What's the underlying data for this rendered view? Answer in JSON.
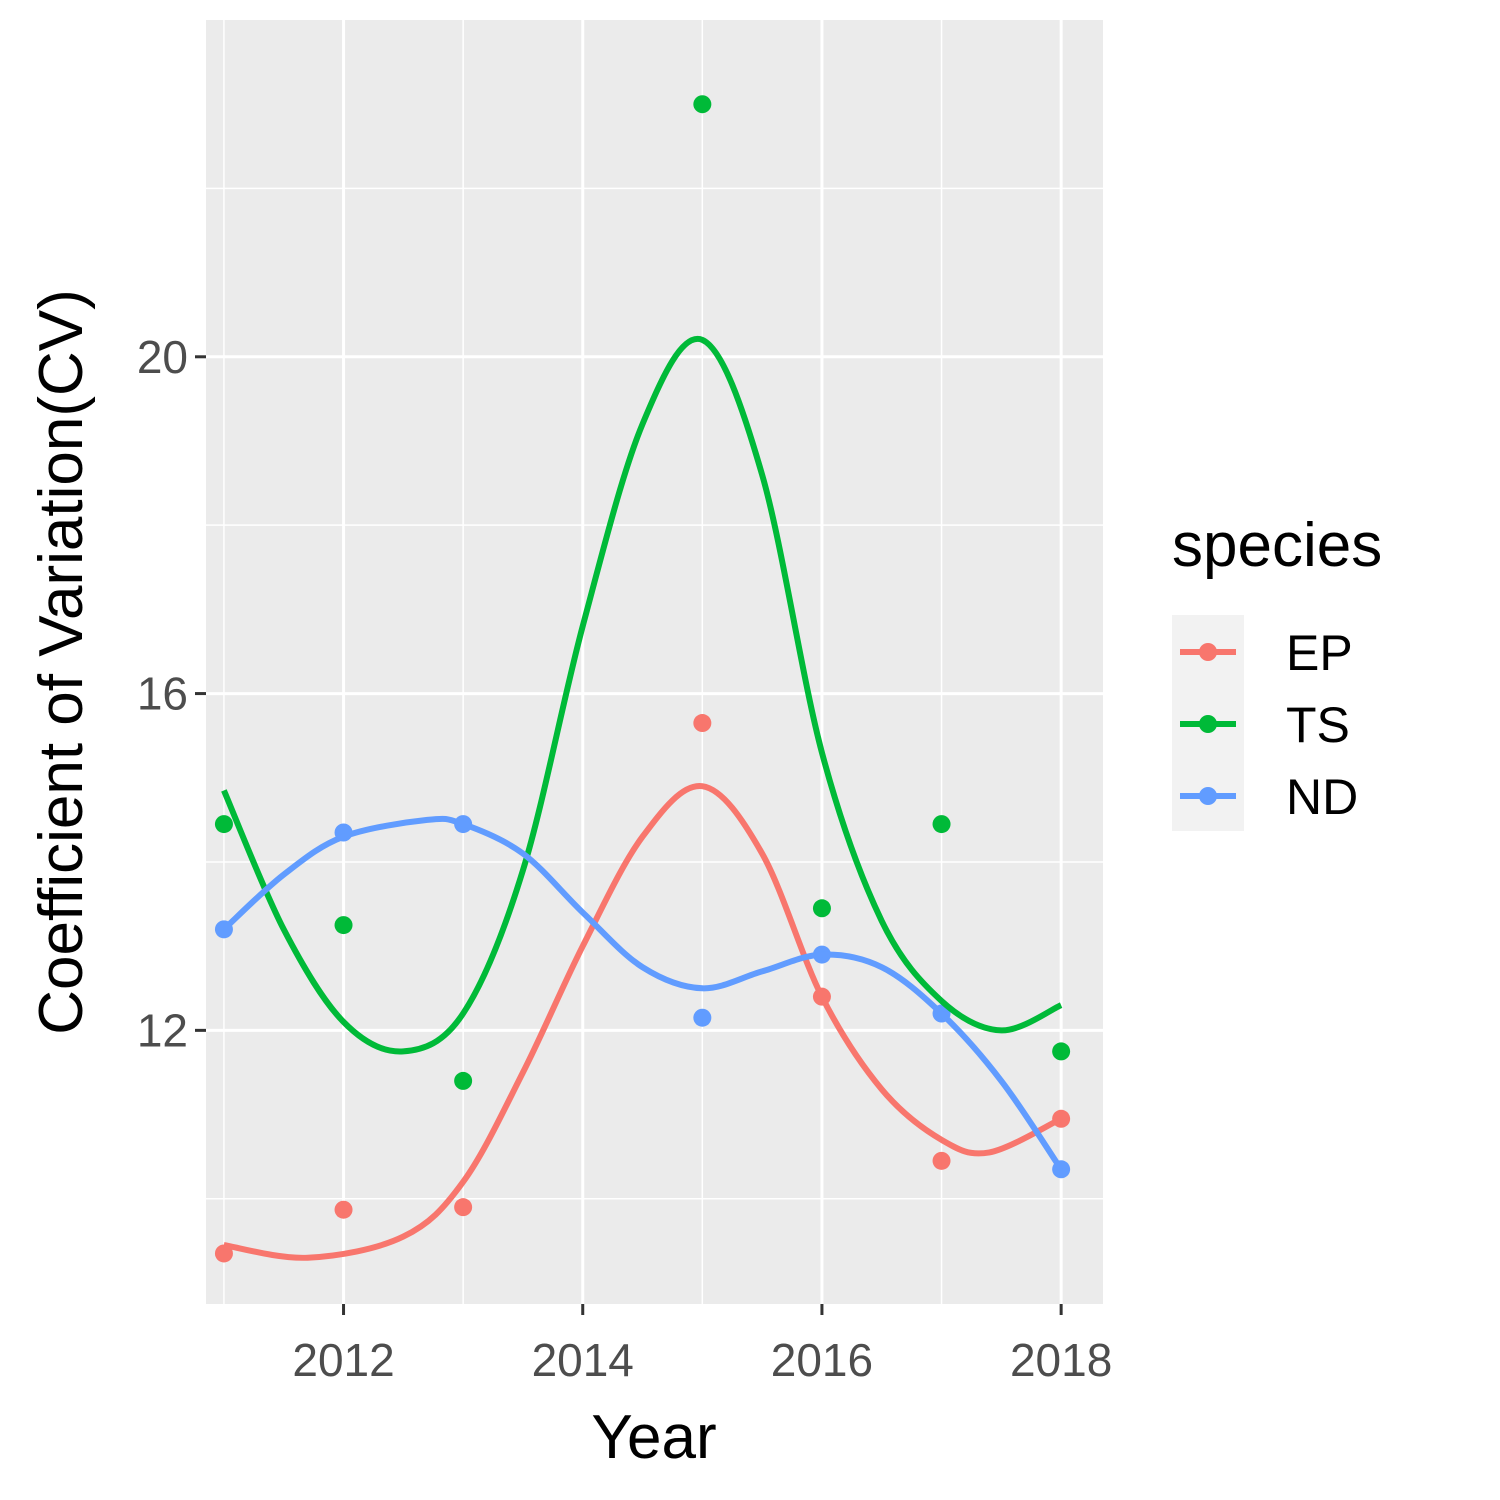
{
  "chart_data": {
    "type": "line",
    "xlabel": "Year",
    "ylabel": "Coefficient of Variation(CV)",
    "xlim": [
      2010.85,
      2018.35
    ],
    "ylim": [
      8.75,
      24.0
    ],
    "x_ticks": [
      2012,
      2014,
      2016,
      2018
    ],
    "x_tick_labels": [
      "2012",
      "2014",
      "2016",
      "2018"
    ],
    "y_ticks": [
      12,
      16,
      20
    ],
    "y_tick_labels": [
      "12",
      "16",
      "20"
    ],
    "grid": true,
    "legend": {
      "title": "species",
      "position": "right"
    },
    "series": [
      {
        "name": "EP",
        "color": "#F8766D",
        "points": [
          {
            "x": 2011,
            "y": 9.35
          },
          {
            "x": 2012,
            "y": 9.87
          },
          {
            "x": 2013,
            "y": 9.9
          },
          {
            "x": 2015,
            "y": 15.65
          },
          {
            "x": 2016,
            "y": 12.4
          },
          {
            "x": 2017,
            "y": 10.45
          },
          {
            "x": 2018,
            "y": 10.95
          }
        ],
        "smooth": [
          {
            "x": 2011,
            "y": 9.45
          },
          {
            "x": 2011.7,
            "y": 9.3
          },
          {
            "x": 2012.5,
            "y": 9.55
          },
          {
            "x": 2013,
            "y": 10.2
          },
          {
            "x": 2013.5,
            "y": 11.5
          },
          {
            "x": 2014,
            "y": 13.0
          },
          {
            "x": 2014.5,
            "y": 14.3
          },
          {
            "x": 2015,
            "y": 14.9
          },
          {
            "x": 2015.5,
            "y": 14.1
          },
          {
            "x": 2016,
            "y": 12.4
          },
          {
            "x": 2016.5,
            "y": 11.3
          },
          {
            "x": 2017,
            "y": 10.7
          },
          {
            "x": 2017.4,
            "y": 10.55
          },
          {
            "x": 2018,
            "y": 10.95
          }
        ]
      },
      {
        "name": "TS",
        "color": "#00BA38",
        "points": [
          {
            "x": 2011,
            "y": 14.45
          },
          {
            "x": 2012,
            "y": 13.25
          },
          {
            "x": 2013,
            "y": 11.4
          },
          {
            "x": 2015,
            "y": 23.0
          },
          {
            "x": 2016,
            "y": 13.45
          },
          {
            "x": 2017,
            "y": 14.45
          },
          {
            "x": 2018,
            "y": 11.75
          }
        ],
        "smooth": [
          {
            "x": 2011,
            "y": 14.85
          },
          {
            "x": 2011.5,
            "y": 13.2
          },
          {
            "x": 2012,
            "y": 12.1
          },
          {
            "x": 2012.5,
            "y": 11.75
          },
          {
            "x": 2013,
            "y": 12.2
          },
          {
            "x": 2013.5,
            "y": 13.9
          },
          {
            "x": 2014,
            "y": 16.8
          },
          {
            "x": 2014.5,
            "y": 19.2
          },
          {
            "x": 2015,
            "y": 20.2
          },
          {
            "x": 2015.5,
            "y": 18.6
          },
          {
            "x": 2016,
            "y": 15.3
          },
          {
            "x": 2016.5,
            "y": 13.3
          },
          {
            "x": 2017,
            "y": 12.35
          },
          {
            "x": 2017.5,
            "y": 12.0
          },
          {
            "x": 2018,
            "y": 12.3
          }
        ]
      },
      {
        "name": "ND",
        "color": "#619CFF",
        "points": [
          {
            "x": 2011,
            "y": 13.2
          },
          {
            "x": 2012,
            "y": 14.35
          },
          {
            "x": 2013,
            "y": 14.45
          },
          {
            "x": 2015,
            "y": 12.15
          },
          {
            "x": 2016,
            "y": 12.9
          },
          {
            "x": 2017,
            "y": 12.2
          },
          {
            "x": 2018,
            "y": 10.35
          }
        ],
        "smooth": [
          {
            "x": 2011,
            "y": 13.2
          },
          {
            "x": 2011.5,
            "y": 13.85
          },
          {
            "x": 2012,
            "y": 14.3
          },
          {
            "x": 2012.7,
            "y": 14.5
          },
          {
            "x": 2013,
            "y": 14.45
          },
          {
            "x": 2013.5,
            "y": 14.1
          },
          {
            "x": 2014,
            "y": 13.4
          },
          {
            "x": 2014.5,
            "y": 12.75
          },
          {
            "x": 2015,
            "y": 12.5
          },
          {
            "x": 2015.5,
            "y": 12.7
          },
          {
            "x": 2016,
            "y": 12.9
          },
          {
            "x": 2016.5,
            "y": 12.75
          },
          {
            "x": 2017,
            "y": 12.2
          },
          {
            "x": 2017.5,
            "y": 11.4
          },
          {
            "x": 2018,
            "y": 10.35
          }
        ]
      }
    ]
  }
}
